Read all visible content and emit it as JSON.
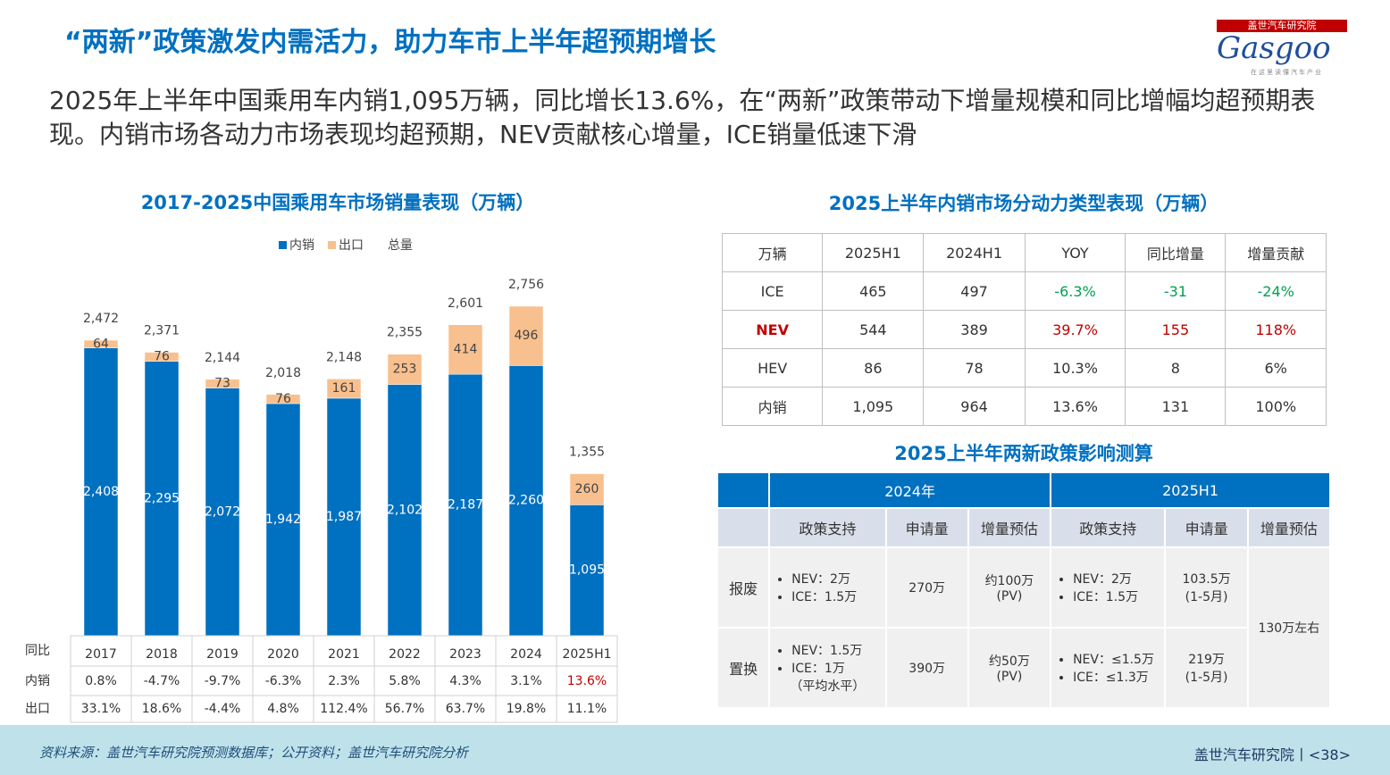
{
  "title": "“两新”政策激发内需活力，助力车市上半年超预期增长",
  "subtitle": "2025年上半年中国乘用车内销1,095万辆，同比增长13.6%，在“两新”政策带动下增量规模和同比增幅均超预期表现。内销市场各动力市场表现均超预期，NEV贡献核心增量，ICE销量低速下滑",
  "logo": {
    "name": "盖世汽车研究院",
    "brand": "Gasgoo",
    "slogan": "在这里读懂汽车产业"
  },
  "chart_data": {
    "type": "bar",
    "stacked": true,
    "title": "2017-2025中国乘用车市场销量表现（万辆）",
    "categories": [
      "2017",
      "2018",
      "2019",
      "2020",
      "2021",
      "2022",
      "2023",
      "2024",
      "2025H1"
    ],
    "series": [
      {
        "name": "内销",
        "color": "#0070c0",
        "values": [
          2408,
          2295,
          2072,
          1942,
          1987,
          2102,
          2187,
          2260,
          1095
        ],
        "value_labels": [
          "2,408",
          "2,295",
          "2,072",
          "1,942",
          "1,987",
          "2,102",
          "2,187",
          "2,260",
          "1,095"
        ]
      },
      {
        "name": "出口",
        "color": "#f8c08e",
        "values": [
          64,
          76,
          73,
          76,
          161,
          253,
          414,
          496,
          260
        ]
      }
    ],
    "total": {
      "name": "总量",
      "values": [
        2472,
        2371,
        2144,
        2018,
        2148,
        2355,
        2601,
        2756,
        1355
      ],
      "value_labels": [
        "2,472",
        "2,371",
        "2,144",
        "2,018",
        "2,148",
        "2,355",
        "2,601",
        "2,756",
        "1,355"
      ]
    },
    "growth_table": {
      "header": "同比",
      "rows": [
        {
          "name": "内销",
          "values": [
            "0.8%",
            "-4.7%",
            "-9.7%",
            "-6.3%",
            "2.3%",
            "5.8%",
            "4.3%",
            "3.1%",
            "13.6%"
          ]
        },
        {
          "name": "出口",
          "values": [
            "33.1%",
            "18.6%",
            "-4.4%",
            "4.8%",
            "112.4%",
            "56.7%",
            "63.7%",
            "19.8%",
            "11.1%"
          ]
        }
      ]
    }
  },
  "power_table": {
    "title": "2025上半年内销市场分动力类型表现（万辆）",
    "header": [
      "万辆",
      "2025H1",
      "2024H1",
      "YOY",
      "同比增量",
      "增量贡献"
    ],
    "rows": [
      [
        "ICE",
        "465",
        "497",
        "-6.3%",
        "-31",
        "-24%"
      ],
      [
        "NEV",
        "544",
        "389",
        "39.7%",
        "155",
        "118%"
      ],
      [
        "HEV",
        "86",
        "78",
        "10.3%",
        "8",
        "6%"
      ],
      [
        "内销",
        "1,095",
        "964",
        "13.6%",
        "131",
        "100%"
      ]
    ]
  },
  "policy_table": {
    "title": "2025上半年两新政策影响测算",
    "periods": [
      "2024年",
      "2025H1"
    ],
    "columns": [
      "政策支持",
      "申请量",
      "增量预估",
      "政策支持",
      "申请量",
      "增量预估"
    ],
    "rows": [
      {
        "name": "报废",
        "cells": [
          {
            "bullets": [
              "NEV：2万",
              "ICE：1.5万"
            ]
          },
          {
            "lines": [
              "270万"
            ]
          },
          {
            "lines": [
              "约100万",
              "(PV)"
            ]
          },
          {
            "bullets": [
              "NEV：2万",
              "ICE：1.5万"
            ]
          },
          {
            "lines": [
              "103.5万",
              "(1-5月)"
            ]
          }
        ]
      },
      {
        "name": "置换",
        "cells": [
          {
            "bullets": [
              "NEV：1.5万",
              "ICE：1万"
            ],
            "note": "（平均水平）"
          },
          {
            "lines": [
              "390万"
            ]
          },
          {
            "lines": [
              "约50万",
              "(PV)"
            ]
          },
          {
            "bullets": [
              "NEV：≤1.5万",
              "ICE：≤1.3万"
            ]
          },
          {
            "lines": [
              "219万",
              "(1-5月)"
            ]
          }
        ]
      }
    ],
    "total_estimate": "130万左右"
  },
  "footer": {
    "source": "资料来源：盖世汽车研究院预测数据库；公开资料；盖世汽车研究院分析",
    "brand_page": "盖世汽车研究院丨<38>"
  }
}
